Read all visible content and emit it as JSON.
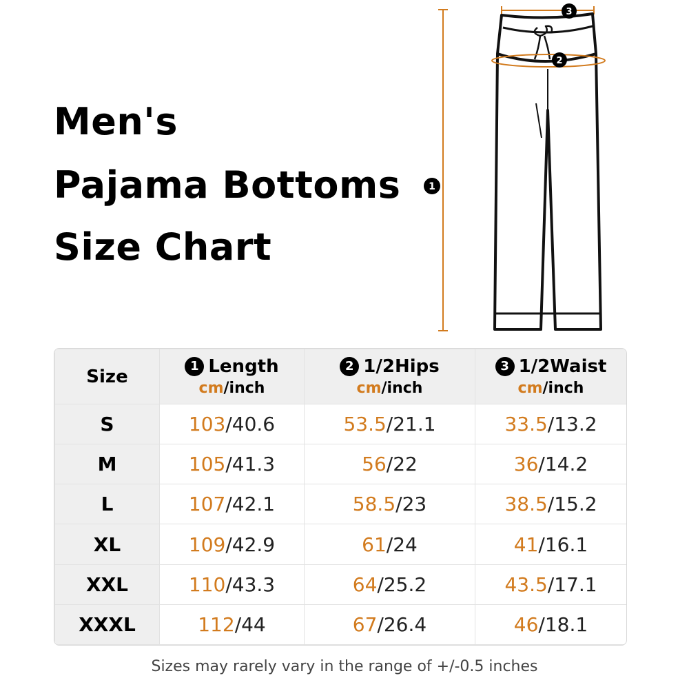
{
  "title": {
    "line1": "Men's",
    "line2": "Pajama Bottoms",
    "line3": "Size Chart"
  },
  "diagram": {
    "marker_length": "1",
    "marker_hips": "2",
    "marker_waist": "3",
    "accent_color": "#d27b1e"
  },
  "table": {
    "header": {
      "size": "Size",
      "length": {
        "num": "1",
        "label": "Length",
        "unit_cm": "cm",
        "unit_inch": "/inch"
      },
      "hips": {
        "num": "2",
        "label": "1/2Hips",
        "unit_cm": "cm",
        "unit_inch": "/inch"
      },
      "waist": {
        "num": "3",
        "label": "1/2Waist",
        "unit_cm": "cm",
        "unit_inch": "/inch"
      }
    },
    "rows": [
      {
        "size": "S",
        "length_cm": "103",
        "length_in": "/40.6",
        "hips_cm": "53.5",
        "hips_in": "/21.1",
        "waist_cm": "33.5",
        "waist_in": "/13.2"
      },
      {
        "size": "M",
        "length_cm": "105",
        "length_in": "/41.3",
        "hips_cm": "56",
        "hips_in": "/22",
        "waist_cm": "36",
        "waist_in": "/14.2"
      },
      {
        "size": "L",
        "length_cm": "107",
        "length_in": "/42.1",
        "hips_cm": "58.5",
        "hips_in": "/23",
        "waist_cm": "38.5",
        "waist_in": "/15.2"
      },
      {
        "size": "XL",
        "length_cm": "109",
        "length_in": "/42.9",
        "hips_cm": "61",
        "hips_in": "/24",
        "waist_cm": "41",
        "waist_in": "/16.1"
      },
      {
        "size": "XXL",
        "length_cm": "110",
        "length_in": "/43.3",
        "hips_cm": "64",
        "hips_in": "/25.2",
        "waist_cm": "43.5",
        "waist_in": "/17.1"
      },
      {
        "size": "XXXL",
        "length_cm": "112",
        "length_in": "/44",
        "hips_cm": "67",
        "hips_in": "/26.4",
        "waist_cm": "46",
        "waist_in": "/18.1"
      }
    ]
  },
  "footnote": "Sizes may rarely vary in the range of +/-0.5 inches"
}
